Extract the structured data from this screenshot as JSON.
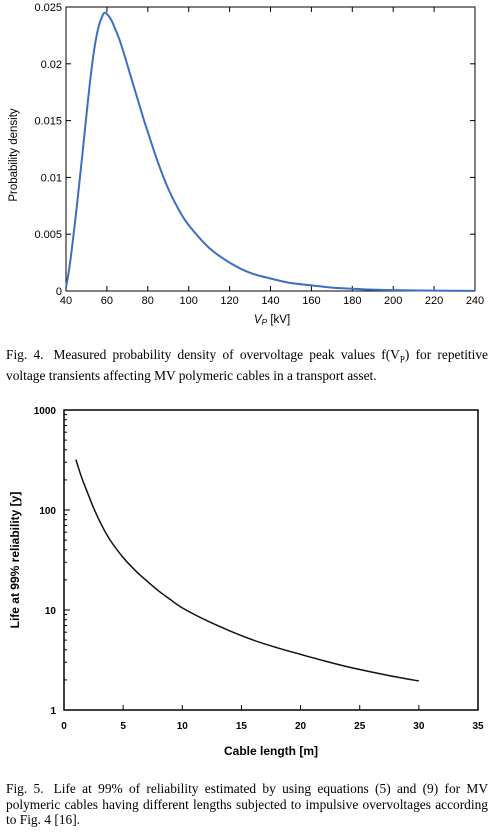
{
  "chart_data": [
    {
      "type": "line",
      "title": "",
      "xlabel": "V",
      "xlabel_sub": "P",
      "xlabel_unit": " [kV]",
      "ylabel": "Probability density",
      "xlim": [
        40,
        240
      ],
      "ylim": [
        0,
        0.025
      ],
      "x_ticks": [
        40,
        60,
        80,
        100,
        120,
        140,
        160,
        180,
        200,
        220,
        240
      ],
      "y_ticks": [
        0,
        0.005,
        0.01,
        0.015,
        0.02,
        0.025
      ],
      "y_tick_labels": [
        "0",
        "0.005",
        "0.01",
        "0.015",
        "0.02",
        "0.025"
      ],
      "grid": false,
      "line_color": "#3c6fc4",
      "series": [
        {
          "x": [
            40,
            42,
            45,
            48,
            50,
            52,
            54,
            56,
            58,
            59,
            60,
            62,
            64,
            66,
            68,
            70,
            72,
            75,
            78,
            80,
            85,
            90,
            95,
            100,
            110,
            120,
            130,
            140,
            150,
            160,
            170,
            180,
            190,
            200,
            220,
            240
          ],
          "y": [
            0.0003,
            0.0025,
            0.007,
            0.012,
            0.0155,
            0.0188,
            0.0215,
            0.0233,
            0.0243,
            0.0245,
            0.0244,
            0.0239,
            0.0231,
            0.0222,
            0.0211,
            0.0199,
            0.0187,
            0.0169,
            0.0151,
            0.014,
            0.0113,
            0.009,
            0.0072,
            0.0058,
            0.0038,
            0.0025,
            0.0016,
            0.0011,
            0.0007,
            0.0005,
            0.0003,
            0.0002,
            0.00012,
            8e-05,
            3e-05,
            1e-05
          ]
        }
      ],
      "caption_label": "Fig. 4.",
      "caption_text": "Measured probability density of overvoltage peak values f(V",
      "caption_sub": "P",
      "caption_text_end": ") for repetitive voltage transients affecting MV polymeric cables in a transport asset."
    },
    {
      "type": "line",
      "title": "",
      "xlabel": "Cable length [m]",
      "ylabel": "Life at 99% reliability [y]",
      "xlim": [
        0,
        35
      ],
      "ylim": [
        1,
        1000
      ],
      "y_scale": "log",
      "x_ticks": [
        0,
        5,
        10,
        15,
        20,
        25,
        30,
        35
      ],
      "y_ticks": [
        1,
        10,
        100,
        1000
      ],
      "y_tick_labels": [
        "1",
        "10",
        "100",
        "1000"
      ],
      "grid": false,
      "line_color": "#111111",
      "series": [
        {
          "x": [
            1,
            1.5,
            2,
            2.5,
            3,
            3.5,
            4,
            5,
            6,
            7,
            8,
            9,
            10,
            12,
            14,
            16,
            18,
            20,
            22,
            24,
            26,
            28,
            30
          ],
          "y": [
            320,
            210,
            148,
            105,
            78,
            60,
            48,
            33.5,
            25,
            19.5,
            15.5,
            12.7,
            10.5,
            7.9,
            6.2,
            5.0,
            4.2,
            3.6,
            3.1,
            2.7,
            2.4,
            2.15,
            1.95
          ]
        }
      ],
      "caption_label": "Fig. 5.",
      "caption_text": "Life at 99% of reliability estimated by using equations (5) and (9) for MV polymeric cables having different lengths subjected to impulsive overvoltages according to Fig. 4 [16]."
    }
  ]
}
